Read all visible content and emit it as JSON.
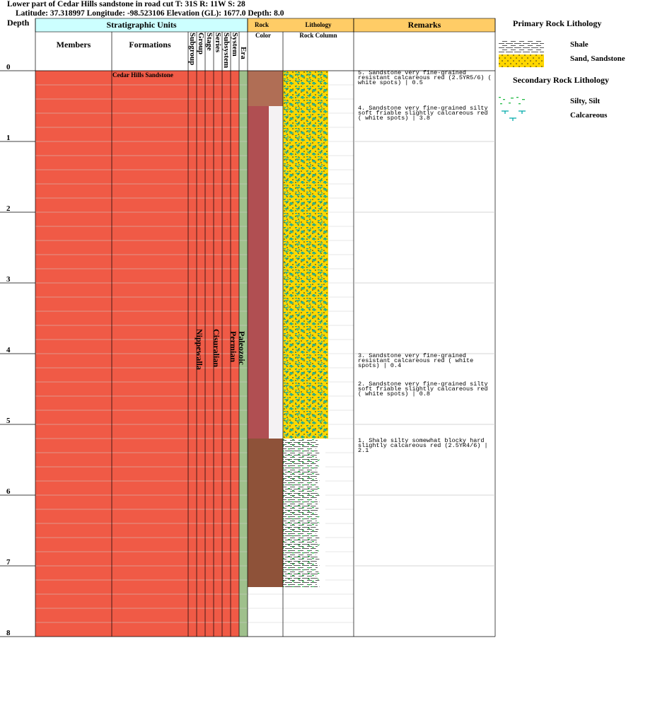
{
  "header": {
    "line1": "Lower part of Cedar Hills sandstone in road cut  T: 31S R: 11W S: 28",
    "line2": "Latitude: 37.318997 Longitude: -98.523106 Elevation (GL): 1677.0 Depth: 8.0"
  },
  "columns": {
    "depth": "Depth",
    "strat_units": "Stratigraphic Units",
    "members": "Members",
    "formations": "Formations",
    "subgroup": "Subgroup",
    "group": "Group",
    "stage": "Stage",
    "series": "Series",
    "subsystem": "Subsystem",
    "system": "System",
    "era": "Era",
    "rock": "Rock",
    "color": "Color",
    "lithology": "Lithology",
    "rock_column": "Rock Column",
    "remarks": "Remarks"
  },
  "depth_ticks": [
    "0",
    "1",
    "2",
    "3",
    "4",
    "5",
    "6",
    "7",
    "8"
  ],
  "units": {
    "formation": "Cedar Hills Sandstone",
    "group": "Nippewalla",
    "series": "Cisuralian",
    "system": "Permian",
    "era": "Paleozoic"
  },
  "remarks": [
    {
      "text": "5. Sandstone very fine-grained resistant calcareous red (2.5YR5/6) ( white spots) | 0.5"
    },
    {
      "text": "4. Sandstone very fine-grained silty soft friable slightly calcareous red ( white spots) | 3.8"
    },
    {
      "text": "3. Sandstone very fine-grained resistant calcareous red ( white spots) | 0.4"
    },
    {
      "text": "2. Sandstone very fine-grained silty soft friable slightly calcareous red ( white spots) | 0.8"
    },
    {
      "text": "1. Shale silty somewhat blocky hard slightly calcareous red (2.5YR4/6) | 2.1"
    }
  ],
  "legend": {
    "primary_title": "Primary Rock Lithology",
    "shale": "Shale",
    "sandstone": "Sand, Sandstone",
    "secondary_title": "Secondary Rock Lithology",
    "silt": "Silty, Silt",
    "calcareous": "Calcareous"
  },
  "colors": {
    "strat_fill": "#f05a46",
    "era_fill": "#9fc08c",
    "header_cyan": "#ccffff",
    "header_orange": "#ffcc66",
    "sand_yellow": "#ffd700",
    "rock_red_light": "#b06e55",
    "rock_red": "#b04f52",
    "rock_brown": "#8e5239"
  }
}
